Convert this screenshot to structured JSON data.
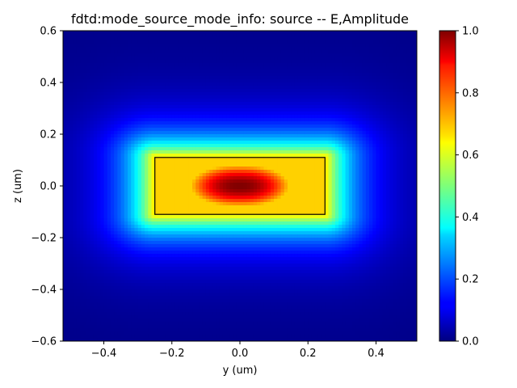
{
  "chart_data": {
    "type": "heatmap",
    "title": "fdtd:mode_source_mode_info: source -- E,Amplitude",
    "xlabel": "y (um)",
    "ylabel": "z (um)",
    "xlim": [
      -0.52,
      0.52
    ],
    "ylim": [
      -0.6,
      0.6
    ],
    "x_ticks": [
      "−0.4",
      "−0.2",
      "0.0",
      "0.2",
      "0.4"
    ],
    "x_tick_values": [
      -0.4,
      -0.2,
      0.0,
      0.2,
      0.4
    ],
    "y_ticks": [
      "−0.6",
      "−0.4",
      "−0.2",
      "0.0",
      "0.2",
      "0.4",
      "0.6"
    ],
    "y_tick_values": [
      -0.6,
      -0.4,
      -0.2,
      0.0,
      0.2,
      0.4,
      0.6
    ],
    "colormap": "jet",
    "colorbar_range": [
      0.0,
      1.0
    ],
    "colorbar_ticks": [
      "0.0",
      "0.2",
      "0.4",
      "0.6",
      "0.8",
      "1.0"
    ],
    "colorbar_tick_values": [
      0.0,
      0.2,
      0.4,
      0.6,
      0.8,
      1.0
    ],
    "field_peak": {
      "y": 0.0,
      "z": 0.0,
      "value": 1.0
    },
    "waveguide_outline": {
      "y_min": -0.25,
      "y_max": 0.25,
      "z_min": -0.11,
      "z_max": 0.11
    },
    "outline_color": "#000000",
    "grid": false
  }
}
